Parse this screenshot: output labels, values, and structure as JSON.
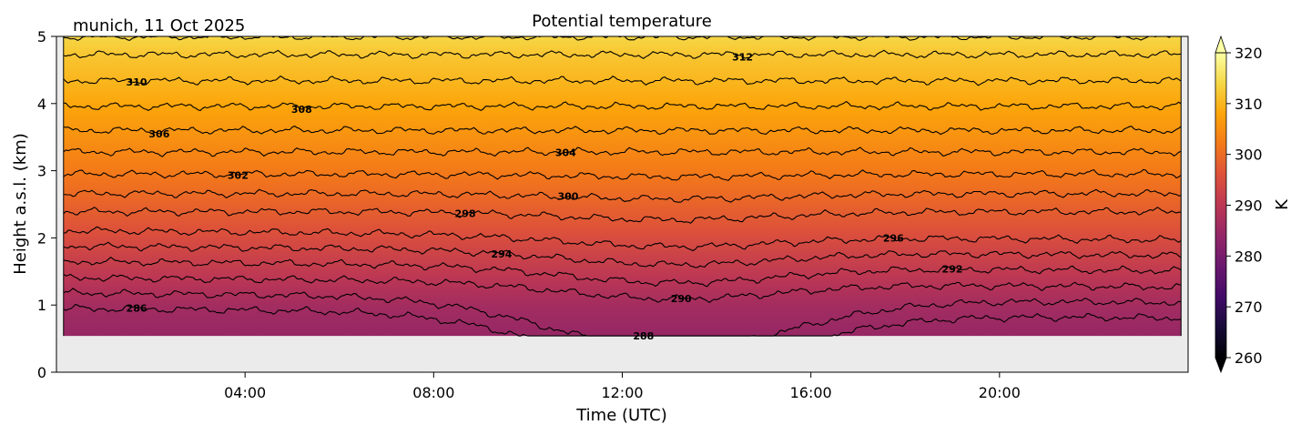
{
  "chart_data": {
    "type": "heatmap",
    "title": "Potential temperature",
    "subtitle": "munich, 11 Oct 2025",
    "xlabel": "Time (UTC)",
    "ylabel": "Height a.s.l. (km)",
    "xlim_hours": [
      0,
      24
    ],
    "ylim": [
      0,
      5
    ],
    "xticks": [
      "04:00",
      "08:00",
      "12:00",
      "16:00",
      "20:00"
    ],
    "xtick_hours": [
      4,
      8,
      12,
      16,
      20
    ],
    "yticks": [
      "0",
      "1",
      "2",
      "3",
      "4",
      "5"
    ],
    "data_coverage": {
      "time_start_hours": 0.15,
      "time_end_hours": 23.85,
      "height_bottom_km": 0.54,
      "height_top_km": 5.0
    },
    "missing_color": "#ebebeb",
    "colormap": "inferno",
    "colorbar": {
      "label": "K",
      "range": [
        260,
        320
      ],
      "ticks": [
        "260",
        "270",
        "280",
        "290",
        "300",
        "310",
        "320"
      ],
      "extend": "both"
    },
    "contours": [
      {
        "level": 286,
        "height_km": 0.95,
        "label": "286",
        "label_time_h": 1.7
      },
      {
        "level": 288,
        "height_km": 1.18,
        "label": "288",
        "label_time_h": 12.45
      },
      {
        "level": 290,
        "height_km": 1.41,
        "label": "290",
        "label_time_h": 13.25
      },
      {
        "level": 292,
        "height_km": 1.65,
        "label": "292",
        "label_time_h": 19.0
      },
      {
        "level": 294,
        "height_km": 1.88,
        "label": "294",
        "label_time_h": 9.44
      },
      {
        "level": 296,
        "height_km": 2.11,
        "label": "296",
        "label_time_h": 17.75
      },
      {
        "level": 298,
        "height_km": 2.39,
        "label": "298",
        "label_time_h": 8.67
      },
      {
        "level": 300,
        "height_km": 2.66,
        "label": "300",
        "label_time_h": 10.85
      },
      {
        "level": 302,
        "height_km": 2.95,
        "label": "302",
        "label_time_h": 3.85
      },
      {
        "level": 304,
        "height_km": 3.28,
        "label": "304",
        "label_time_h": 10.8
      },
      {
        "level": 306,
        "height_km": 3.6,
        "label": "306",
        "label_time_h": 2.18
      },
      {
        "level": 308,
        "height_km": 3.96,
        "label": "308",
        "label_time_h": 5.2
      },
      {
        "level": 310,
        "height_km": 4.34,
        "label": "310",
        "label_time_h": 1.7
      },
      {
        "level": 312,
        "height_km": 4.73,
        "label": "312",
        "label_time_h": 14.55
      }
    ],
    "surface_theta_K": 284.5,
    "top_theta_K": 314
  }
}
